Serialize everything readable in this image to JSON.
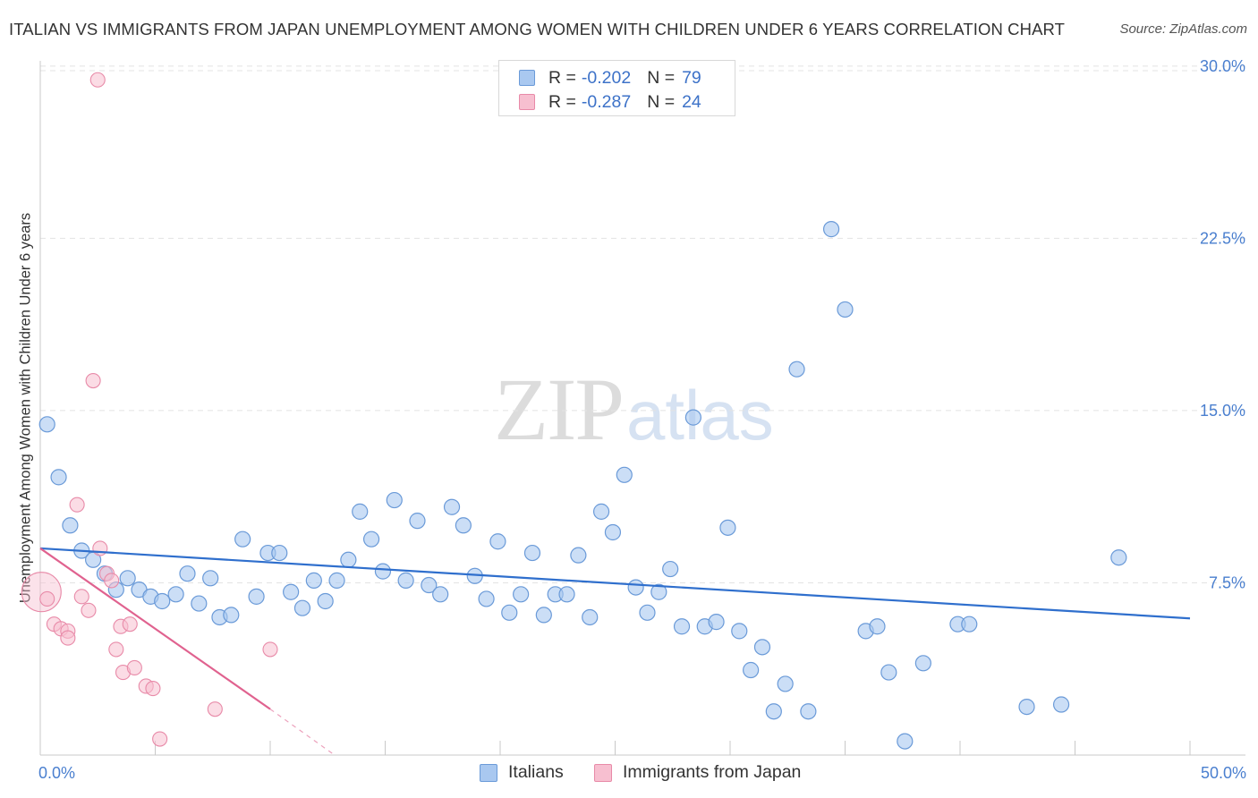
{
  "title": "ITALIAN VS IMMIGRANTS FROM JAPAN UNEMPLOYMENT AMONG WOMEN WITH CHILDREN UNDER 6 YEARS CORRELATION CHART",
  "source": "Source: ZipAtlas.com",
  "watermark": {
    "zip": "ZIP",
    "atlas": "atlas"
  },
  "legend": {
    "r_label": "R =",
    "n_label": "N =",
    "rows": [
      {
        "name": "Italians",
        "r": "-0.202",
        "n": "79"
      },
      {
        "name": "Immigrants from Japan",
        "r": "-0.287",
        "n": "24"
      }
    ]
  },
  "colors": {
    "italians_fill": "#a9c8f0",
    "italians_stroke": "#6a9ad8",
    "italians_line": "#2f6fcd",
    "japan_fill": "#f7bfd0",
    "japan_stroke": "#e88aa8",
    "japan_line": "#e0628f",
    "axis_text": "#4a7fcf",
    "grid": "#e3e3e3"
  },
  "chart_data": {
    "type": "scatter",
    "title": "ITALIAN VS IMMIGRANTS FROM JAPAN UNEMPLOYMENT AMONG WOMEN WITH CHILDREN UNDER 6 YEARS CORRELATION CHART",
    "xlabel": "",
    "ylabel": "Unemployment Among Women with Children Under 6 years",
    "xlim": [
      0,
      50
    ],
    "ylim": [
      0,
      30.5
    ],
    "x_tick_labels": [
      "0.0%",
      "50.0%"
    ],
    "y_ticks": [
      7.5,
      15.0,
      22.5,
      30.0
    ],
    "y_tick_labels": [
      "7.5%",
      "15.0%",
      "22.5%",
      "30.0%"
    ],
    "legend_position": "top-center",
    "series": [
      {
        "name": "Italians",
        "r": -0.202,
        "n": 79,
        "trend": {
          "x": [
            0,
            50
          ],
          "y": [
            9.0,
            5.95
          ]
        },
        "points": [
          {
            "x": 0.3,
            "y": 14.4
          },
          {
            "x": 0.8,
            "y": 12.1
          },
          {
            "x": 1.3,
            "y": 10.0
          },
          {
            "x": 1.8,
            "y": 8.9
          },
          {
            "x": 2.3,
            "y": 8.5
          },
          {
            "x": 2.8,
            "y": 7.9
          },
          {
            "x": 3.3,
            "y": 7.2
          },
          {
            "x": 3.8,
            "y": 7.7
          },
          {
            "x": 4.3,
            "y": 7.2
          },
          {
            "x": 4.8,
            "y": 6.9
          },
          {
            "x": 5.3,
            "y": 6.7
          },
          {
            "x": 5.9,
            "y": 7.0
          },
          {
            "x": 6.4,
            "y": 7.9
          },
          {
            "x": 6.9,
            "y": 6.6
          },
          {
            "x": 7.4,
            "y": 7.7
          },
          {
            "x": 7.8,
            "y": 6.0
          },
          {
            "x": 8.3,
            "y": 6.1
          },
          {
            "x": 8.8,
            "y": 9.4
          },
          {
            "x": 9.4,
            "y": 6.9
          },
          {
            "x": 9.9,
            "y": 8.8
          },
          {
            "x": 10.4,
            "y": 8.8
          },
          {
            "x": 10.9,
            "y": 7.1
          },
          {
            "x": 11.4,
            "y": 6.4
          },
          {
            "x": 11.9,
            "y": 7.6
          },
          {
            "x": 12.4,
            "y": 6.7
          },
          {
            "x": 12.9,
            "y": 7.6
          },
          {
            "x": 13.4,
            "y": 8.5
          },
          {
            "x": 13.9,
            "y": 10.6
          },
          {
            "x": 14.4,
            "y": 9.4
          },
          {
            "x": 14.9,
            "y": 8.0
          },
          {
            "x": 15.4,
            "y": 11.1
          },
          {
            "x": 15.9,
            "y": 7.6
          },
          {
            "x": 16.4,
            "y": 10.2
          },
          {
            "x": 16.9,
            "y": 7.4
          },
          {
            "x": 17.4,
            "y": 7.0
          },
          {
            "x": 17.9,
            "y": 10.8
          },
          {
            "x": 18.4,
            "y": 10.0
          },
          {
            "x": 18.9,
            "y": 7.8
          },
          {
            "x": 19.4,
            "y": 6.8
          },
          {
            "x": 19.9,
            "y": 9.3
          },
          {
            "x": 20.4,
            "y": 6.2
          },
          {
            "x": 20.9,
            "y": 7.0
          },
          {
            "x": 21.4,
            "y": 8.8
          },
          {
            "x": 21.9,
            "y": 6.1
          },
          {
            "x": 22.4,
            "y": 7.0
          },
          {
            "x": 22.9,
            "y": 7.0
          },
          {
            "x": 23.4,
            "y": 8.7
          },
          {
            "x": 23.9,
            "y": 6.0
          },
          {
            "x": 24.4,
            "y": 10.6
          },
          {
            "x": 24.9,
            "y": 9.7
          },
          {
            "x": 25.4,
            "y": 12.2
          },
          {
            "x": 25.9,
            "y": 7.3
          },
          {
            "x": 26.4,
            "y": 6.2
          },
          {
            "x": 26.9,
            "y": 7.1
          },
          {
            "x": 27.4,
            "y": 8.1
          },
          {
            "x": 27.9,
            "y": 5.6
          },
          {
            "x": 28.4,
            "y": 14.7
          },
          {
            "x": 28.9,
            "y": 5.6
          },
          {
            "x": 29.4,
            "y": 5.8
          },
          {
            "x": 29.9,
            "y": 9.9
          },
          {
            "x": 30.4,
            "y": 5.4
          },
          {
            "x": 30.9,
            "y": 3.7
          },
          {
            "x": 31.4,
            "y": 4.7
          },
          {
            "x": 31.9,
            "y": 1.9
          },
          {
            "x": 32.4,
            "y": 3.1
          },
          {
            "x": 32.9,
            "y": 16.8
          },
          {
            "x": 33.4,
            "y": 1.9
          },
          {
            "x": 34.4,
            "y": 22.9
          },
          {
            "x": 35.0,
            "y": 19.4
          },
          {
            "x": 35.9,
            "y": 5.4
          },
          {
            "x": 36.4,
            "y": 5.6
          },
          {
            "x": 36.9,
            "y": 3.6
          },
          {
            "x": 37.6,
            "y": 0.6
          },
          {
            "x": 38.4,
            "y": 4.0
          },
          {
            "x": 39.9,
            "y": 5.7
          },
          {
            "x": 40.4,
            "y": 5.7
          },
          {
            "x": 42.9,
            "y": 2.1
          },
          {
            "x": 44.4,
            "y": 2.2
          },
          {
            "x": 46.9,
            "y": 8.6
          }
        ]
      },
      {
        "name": "Immigrants from Japan",
        "r": -0.287,
        "n": 24,
        "trend": {
          "x": [
            0,
            10.0
          ],
          "y": [
            9.0,
            2.0
          ]
        },
        "trend_extension": {
          "x": [
            10.0,
            12.8
          ],
          "y": [
            2.0,
            0.0
          ]
        },
        "points": [
          {
            "x": 0.05,
            "y": 7.1
          },
          {
            "x": 0.3,
            "y": 6.8
          },
          {
            "x": 0.6,
            "y": 5.7
          },
          {
            "x": 0.9,
            "y": 5.5
          },
          {
            "x": 1.2,
            "y": 5.4
          },
          {
            "x": 1.2,
            "y": 5.1
          },
          {
            "x": 1.6,
            "y": 10.9
          },
          {
            "x": 1.8,
            "y": 6.9
          },
          {
            "x": 2.1,
            "y": 6.3
          },
          {
            "x": 2.3,
            "y": 16.3
          },
          {
            "x": 2.5,
            "y": 29.4
          },
          {
            "x": 2.9,
            "y": 7.9
          },
          {
            "x": 3.1,
            "y": 7.6
          },
          {
            "x": 3.3,
            "y": 4.6
          },
          {
            "x": 3.5,
            "y": 5.6
          },
          {
            "x": 3.6,
            "y": 3.6
          },
          {
            "x": 3.9,
            "y": 5.7
          },
          {
            "x": 4.1,
            "y": 3.8
          },
          {
            "x": 4.6,
            "y": 3.0
          },
          {
            "x": 4.9,
            "y": 2.9
          },
          {
            "x": 5.2,
            "y": 0.7
          },
          {
            "x": 7.6,
            "y": 2.0
          },
          {
            "x": 10.0,
            "y": 4.6
          },
          {
            "x": 2.6,
            "y": 9.0
          }
        ]
      }
    ]
  }
}
